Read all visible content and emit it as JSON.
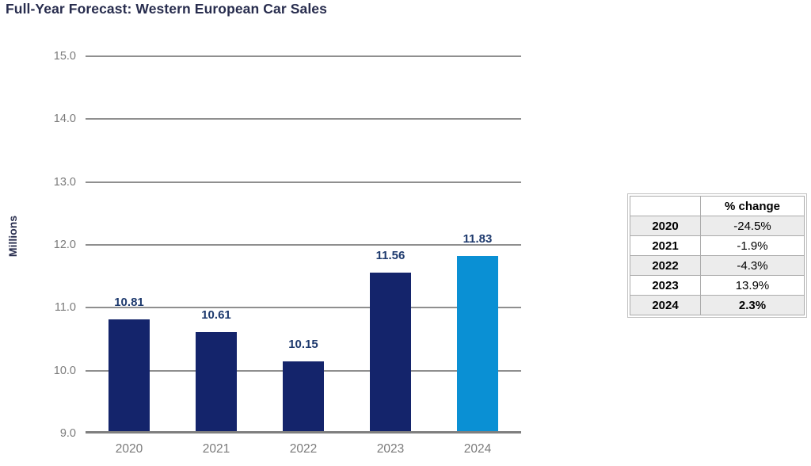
{
  "title": "Full-Year Forecast: Western European Car Sales",
  "chart_data": {
    "type": "bar",
    "title": "Full-Year Forecast: Western European Car Sales",
    "categories": [
      "2020",
      "2021",
      "2022",
      "2023",
      "2024"
    ],
    "values": [
      10.81,
      10.61,
      10.15,
      11.56,
      11.83
    ],
    "value_labels": [
      "10.81",
      "10.61",
      "10.15",
      "11.56",
      "11.83"
    ],
    "xlabel": "",
    "ylabel": "Millions",
    "ylim": [
      9.0,
      15.0
    ],
    "yticks": [
      9.0,
      10.0,
      11.0,
      12.0,
      13.0,
      14.0,
      15.0
    ],
    "grid": true,
    "legend_position": "none",
    "bar_colors": [
      "#14246b",
      "#14246b",
      "#14246b",
      "#14246b",
      "#0a90d4"
    ]
  },
  "side_table": {
    "header": [
      "",
      "% change"
    ],
    "rows": [
      {
        "year": "2020",
        "change": "-24.5%"
      },
      {
        "year": "2021",
        "change": "-1.9%"
      },
      {
        "year": "2022",
        "change": "-4.3%"
      },
      {
        "year": "2023",
        "change": "13.9%"
      },
      {
        "year": "2024",
        "change": "2.3%"
      }
    ]
  },
  "colors": {
    "bar_navy": "#14246b",
    "bar_highlight_blue": "#0a90d4",
    "title_navy": "#282d4e",
    "data_label_navy": "#1e3a6e",
    "axis_text_gray": "#7a7a7a",
    "gridline_gray": "#8f8f8f",
    "table_border_gray": "#ababab",
    "table_shaded_row": "#ececec"
  }
}
